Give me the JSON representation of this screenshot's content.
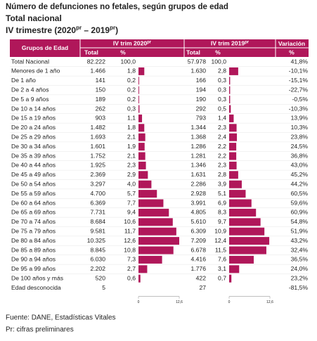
{
  "header": {
    "title": "Número de defunciones no fetales, según grupos de edad",
    "subtitle": "Total nacional",
    "period": [
      "IV trimestre (2020",
      "pr",
      " – 2019",
      "pr",
      ")"
    ]
  },
  "table": {
    "columns": {
      "group": "Grupos de Edad",
      "period_2020": [
        "IV trim 2020",
        "pr"
      ],
      "period_2019": [
        "IV trim 2019",
        "pr"
      ],
      "change": "Variación",
      "total_2020": "Total",
      "pct_2020": "%",
      "total_2019": "Total",
      "pct_2019": "%",
      "change_unit": "%"
    },
    "total_row": {
      "label": "Total Nacional",
      "total_2020": "82.222",
      "pct_2020": "100,0",
      "total_2019": "57.978",
      "pct_2019": "100,0",
      "variacion": "41,8%"
    },
    "rows": [
      {
        "label": "Menores de 1 año",
        "total_2020": "1.466",
        "total_2019": "1.630",
        "variacion": "-10,1%"
      },
      {
        "label": "De 1 año",
        "total_2020": "141",
        "total_2019": "166",
        "variacion": "-15,1%"
      },
      {
        "label": "De 2 a 4 años",
        "total_2020": "150",
        "total_2019": "194",
        "variacion": "-22,7%"
      },
      {
        "label": "De 5 a 9 años",
        "total_2020": "189",
        "total_2019": "190",
        "variacion": "-0,5%"
      },
      {
        "label": "De 10 a 14 años",
        "total_2020": "262",
        "total_2019": "292",
        "variacion": "-10,3%"
      },
      {
        "label": "De 15 a 19 años",
        "total_2020": "903",
        "total_2019": "793",
        "variacion": "13,9%"
      },
      {
        "label": "De 20 a 24 años",
        "total_2020": "1.482",
        "total_2019": "1.344",
        "variacion": "10,3%"
      },
      {
        "label": "De 25 a 29 años",
        "total_2020": "1.693",
        "total_2019": "1.368",
        "variacion": "23,8%"
      },
      {
        "label": "De 30 a 34 años",
        "total_2020": "1.601",
        "total_2019": "1.286",
        "variacion": "24,5%"
      },
      {
        "label": "De 35 a 39 años",
        "total_2020": "1.752",
        "total_2019": "1.281",
        "variacion": "36,8%"
      },
      {
        "label": "De 40 a 44 años",
        "total_2020": "1.925",
        "total_2019": "1.346",
        "variacion": "43,0%"
      },
      {
        "label": "De 45 a 49 años",
        "total_2020": "2.369",
        "total_2019": "1.631",
        "variacion": "45,2%"
      },
      {
        "label": "De 50 a 54 años",
        "total_2020": "3.297",
        "total_2019": "2.286",
        "variacion": "44,2%"
      },
      {
        "label": "De 55 a 59 años",
        "total_2020": "4.700",
        "total_2019": "2.928",
        "variacion": "60,5%"
      },
      {
        "label": "De 60 a 64 años",
        "total_2020": "6.369",
        "total_2019": "3.991",
        "variacion": "59,6%"
      },
      {
        "label": "De 65 a 69 años",
        "total_2020": "7.731",
        "total_2019": "4.805",
        "variacion": "60,9%"
      },
      {
        "label": "De 70 a 74 años",
        "total_2020": "8.684",
        "total_2019": "5.610",
        "variacion": "54,8%"
      },
      {
        "label": "De 75 a 79 años",
        "total_2020": "9.581",
        "total_2019": "6.309",
        "variacion": "51,9%"
      },
      {
        "label": "De 80 a 84 años",
        "total_2020": "10.325",
        "total_2019": "7.209",
        "variacion": "43,2%"
      },
      {
        "label": "De 85 a 89 años",
        "total_2020": "8.845",
        "total_2019": "6.678",
        "variacion": "32,4%"
      },
      {
        "label": "De 90 a 94 años",
        "total_2020": "6.030",
        "total_2019": "4.416",
        "variacion": "36,5%"
      },
      {
        "label": "De 95 a 99 años",
        "total_2020": "2.202",
        "total_2019": "1.776",
        "variacion": "24,0%"
      },
      {
        "label": "De 100 años y más",
        "total_2020": "520",
        "total_2019": "422",
        "variacion": "23,2%"
      }
    ],
    "pct_2020": {
      "values": [
        1.8,
        0.2,
        0.2,
        0.2,
        0.3,
        1.1,
        1.8,
        2.1,
        1.9,
        2.1,
        2.3,
        2.9,
        4.0,
        5.7,
        7.7,
        9.4,
        10.6,
        11.7,
        12.6,
        10.8,
        7.3,
        2.7,
        0.6
      ],
      "value_labels": [
        "1,8",
        "0,2",
        "0,2",
        "0,2",
        "0,3",
        "1,1",
        "1,8",
        "2,1",
        "1,9",
        "2,1",
        "2,3",
        "2,9",
        "4,0",
        "5,7",
        "7,7",
        "9,4",
        "10,6",
        "11,7",
        "12,6",
        "10,8",
        "7,3",
        "2,7",
        "0,6"
      ]
    },
    "pct_2019": {
      "values": [
        2.8,
        0.3,
        0.3,
        0.3,
        0.5,
        1.4,
        2.3,
        2.4,
        2.2,
        2.2,
        2.3,
        2.8,
        3.9,
        5.1,
        6.9,
        8.3,
        9.7,
        10.9,
        12.4,
        11.5,
        7.6,
        3.1,
        0.7
      ],
      "value_labels": [
        "2,8",
        "0,3",
        "0,3",
        "0,3",
        "0,5",
        "1,4",
        "2,3",
        "2,4",
        "2,2",
        "2,2",
        "2,3",
        "2,8",
        "3,9",
        "5,1",
        "6,9",
        "8,3",
        "9,7",
        "10,9",
        "12,4",
        "11,5",
        "7,6",
        "3,1",
        "0,7"
      ]
    },
    "unknown_row": {
      "label": "Edad desconocida",
      "total_2020": "5",
      "total_2019": "27",
      "variacion": "-81,5%"
    },
    "bar_axis": {
      "xlim": [
        0,
        12.6
      ],
      "xticks": [
        0,
        {
          "value": 12.6,
          "label": "12,6"
        }
      ],
      "color": "#b0175a"
    }
  },
  "footer": {
    "source": "Fuente: DANE, Estadísticas Vitales",
    "note": "Pr: cifras preliminares"
  }
}
